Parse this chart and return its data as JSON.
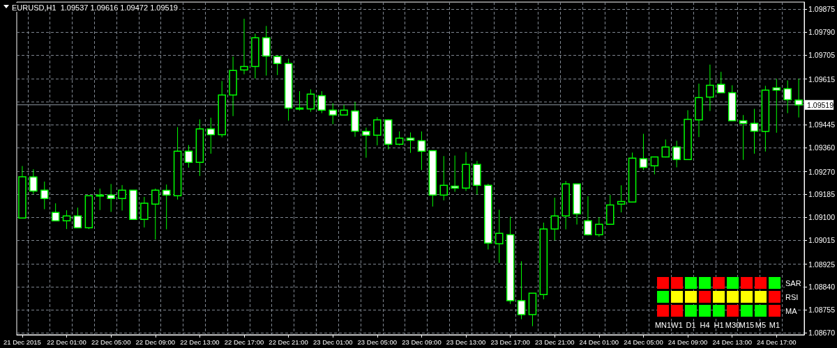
{
  "chart_data": [
    {
      "type": "candlestick",
      "title": "EURUSD,H1  1.09537 1.09616 1.09472 1.09519",
      "color": "#00ff00",
      "grid": true,
      "categories": [
        "21 Dec 2015",
        null,
        null,
        null,
        "22 Dec 01:00",
        null,
        null,
        null,
        "22 Dec 05:00",
        null,
        null,
        null,
        "22 Dec 09:00",
        null,
        null,
        null,
        "22 Dec 13:00",
        null,
        null,
        null,
        "22 Dec 17:00",
        null,
        null,
        null,
        "22 Dec 21:00",
        null,
        null,
        null,
        "23 Dec 01:00",
        null,
        null,
        null,
        "23 Dec 05:00",
        null,
        null,
        null,
        "23 Dec 09:00",
        null,
        null,
        null,
        "23 Dec 13:00",
        null,
        null,
        null,
        "23 Dec 17:00",
        null,
        null,
        null,
        "23 Dec 21:00",
        null,
        null,
        null,
        "24 Dec 01:00",
        null,
        null,
        null,
        "24 Dec 05:00",
        null,
        null,
        null,
        "24 Dec 09:00",
        null,
        null,
        null,
        "24 Dec 13:00",
        null,
        null,
        null,
        "24 Dec 17:00",
        null,
        null
      ],
      "ohlc": [
        [
          1.09097,
          1.09291,
          1.09097,
          1.09251
        ],
        [
          1.0925,
          1.09279,
          1.09187,
          1.09198
        ],
        [
          1.09201,
          1.09233,
          1.0913,
          1.0917
        ],
        [
          1.09118,
          1.09152,
          1.09087,
          1.09087
        ],
        [
          1.09087,
          1.09126,
          1.09056,
          1.09105
        ],
        [
          1.09105,
          1.09136,
          1.09061,
          1.09061
        ],
        [
          1.09061,
          1.0918,
          1.09056,
          1.0918
        ],
        [
          1.09183,
          1.09207,
          1.09127,
          1.09179
        ],
        [
          1.09183,
          1.09224,
          1.0912,
          1.0917
        ],
        [
          1.0917,
          1.0922,
          1.09125,
          1.09201
        ],
        [
          1.09201,
          1.09201,
          1.09092,
          1.09092
        ],
        [
          1.09092,
          1.09176,
          1.09062,
          1.09152
        ],
        [
          1.09149,
          1.09207,
          1.09017,
          1.09201
        ],
        [
          1.092,
          1.09222,
          1.09055,
          1.09183
        ],
        [
          1.0918,
          1.09436,
          1.09166,
          1.09346
        ],
        [
          1.09346,
          1.09369,
          1.09285,
          1.09305
        ],
        [
          1.09305,
          1.09465,
          1.09254,
          1.09429
        ],
        [
          1.09429,
          1.09471,
          1.09337,
          1.09408
        ],
        [
          1.09408,
          1.09608,
          1.09398,
          1.09556
        ],
        [
          1.09556,
          1.09699,
          1.09477,
          1.09647
        ],
        [
          1.09649,
          1.0984,
          1.09633,
          1.09662
        ],
        [
          1.09662,
          1.09784,
          1.09617,
          1.09769
        ],
        [
          1.09769,
          1.09813,
          1.09628,
          1.09701
        ],
        [
          1.09699,
          1.09704,
          1.0963,
          1.09673
        ],
        [
          1.09673,
          1.09691,
          1.0946,
          1.09507
        ],
        [
          1.09503,
          1.0957,
          1.09498,
          1.09507
        ],
        [
          1.09504,
          1.09577,
          1.09493,
          1.09559
        ],
        [
          1.09553,
          1.0957,
          1.09488,
          1.09499
        ],
        [
          1.09499,
          1.09525,
          1.09447,
          1.09481
        ],
        [
          1.09481,
          1.09519,
          1.09481,
          1.09499
        ],
        [
          1.09496,
          1.09529,
          1.094,
          1.09421
        ],
        [
          1.0942,
          1.09434,
          1.09322,
          1.09406
        ],
        [
          1.09406,
          1.09473,
          1.09368,
          1.09463
        ],
        [
          1.09463,
          1.09465,
          1.09353,
          1.09372
        ],
        [
          1.09372,
          1.0942,
          1.09368,
          1.09395
        ],
        [
          1.09395,
          1.09416,
          1.0934,
          1.09387
        ],
        [
          1.09385,
          1.0942,
          1.09276,
          1.09346
        ],
        [
          1.09348,
          1.09348,
          1.0914,
          1.09183
        ],
        [
          1.09183,
          1.09328,
          1.09163,
          1.09219
        ],
        [
          1.09216,
          1.0933,
          1.09195,
          1.09209
        ],
        [
          1.09209,
          1.09343,
          1.09198,
          1.09297
        ],
        [
          1.09297,
          1.0931,
          1.09185,
          1.09219
        ],
        [
          1.09219,
          1.09225,
          1.0898,
          1.09004
        ],
        [
          1.09001,
          1.09128,
          1.0893,
          1.0904
        ],
        [
          1.09035,
          1.09102,
          1.08777,
          1.08789
        ],
        [
          1.08789,
          1.08936,
          1.0872,
          1.08737
        ],
        [
          1.08737,
          1.08817,
          1.08694,
          1.08817
        ],
        [
          1.08812,
          1.0908,
          1.08794,
          1.09056
        ],
        [
          1.09056,
          1.09173,
          1.09014,
          1.09105
        ],
        [
          1.09105,
          1.09235,
          1.09055,
          1.09224
        ],
        [
          1.09224,
          1.09224,
          1.09073,
          1.09113
        ],
        [
          1.09087,
          1.09178,
          1.09032,
          1.09035
        ],
        [
          1.09035,
          1.091,
          1.09027,
          1.09074
        ],
        [
          1.09074,
          1.09183,
          1.09074,
          1.09146
        ],
        [
          1.09149,
          1.09219,
          1.09118,
          1.09159
        ],
        [
          1.09157,
          1.09341,
          1.09157,
          1.0932
        ],
        [
          1.09318,
          1.09411,
          1.09276,
          1.09286
        ],
        [
          1.09292,
          1.09325,
          1.0926,
          1.09325
        ],
        [
          1.09325,
          1.0939,
          1.09323,
          1.09362
        ],
        [
          1.09362,
          1.09385,
          1.09286,
          1.09315
        ],
        [
          1.09315,
          1.09499,
          1.09315,
          1.09465
        ],
        [
          1.09463,
          1.09598,
          1.09399,
          1.09546
        ],
        [
          1.09548,
          1.09669,
          1.09496,
          1.09592
        ],
        [
          1.09595,
          1.09642,
          1.09564,
          1.09564
        ],
        [
          1.09564,
          1.09592,
          1.0946,
          1.0946
        ],
        [
          1.0946,
          1.09481,
          1.09314,
          1.0945
        ],
        [
          1.0945,
          1.09504,
          1.09337,
          1.09421
        ],
        [
          1.0942,
          1.0959,
          1.09345,
          1.09574
        ],
        [
          1.09582,
          1.09616,
          1.09415,
          1.09574
        ],
        [
          1.09579,
          1.0961,
          1.09488,
          1.09538
        ],
        [
          1.09537,
          1.09616,
          1.09472,
          1.09519
        ]
      ],
      "ylim": [
        1.08662,
        1.09902
      ],
      "yticks": [
        1.09875,
        {
          "value": 1.0979,
          "label": "1.09790"
        },
        1.09705,
        1.09615,
        {
          "value": 1.0953,
          "label": null
        },
        1.09445,
        {
          "value": 1.0936,
          "label": "1.09360"
        },
        {
          "value": 1.0927,
          "label": "1.09270"
        },
        1.09185,
        {
          "value": 1.091,
          "label": "1.09100"
        },
        1.09015,
        1.08925,
        {
          "value": 1.0884,
          "label": "1.08840"
        },
        1.08755,
        {
          "value": 1.0867,
          "label": "1.08670"
        }
      ],
      "ref_lines": [
        {
          "axis": "y",
          "value": 1.09519,
          "label": "1.09519",
          "color": "#8c96a0"
        }
      ]
    },
    {
      "type": "other",
      "categories": [
        "MN1",
        "W1",
        "D1",
        "H4",
        "H1",
        "M30",
        "M15",
        "M5",
        "M1"
      ],
      "y_categories": [
        "SAR",
        "RSI",
        "MA"
      ],
      "colors": [
        "#ff0000",
        "#ff0000",
        "#00ff00",
        "#00ff00",
        "#ff0000",
        "#00ff00",
        "#ff0000",
        "#ff0000",
        "#00ff00",
        "#00ff00",
        "#ffff00",
        "#ffff00",
        "#ff0000",
        "#ffff00",
        "#ffff00",
        "#ffff00",
        "#ffff00",
        "#ff0000",
        "#ff0000",
        "#ff0000",
        "#00ff00",
        "#00ff00",
        "#00ff00",
        "#ff0000",
        "#00ff00",
        "#00ff00",
        "#ff0000"
      ]
    }
  ]
}
